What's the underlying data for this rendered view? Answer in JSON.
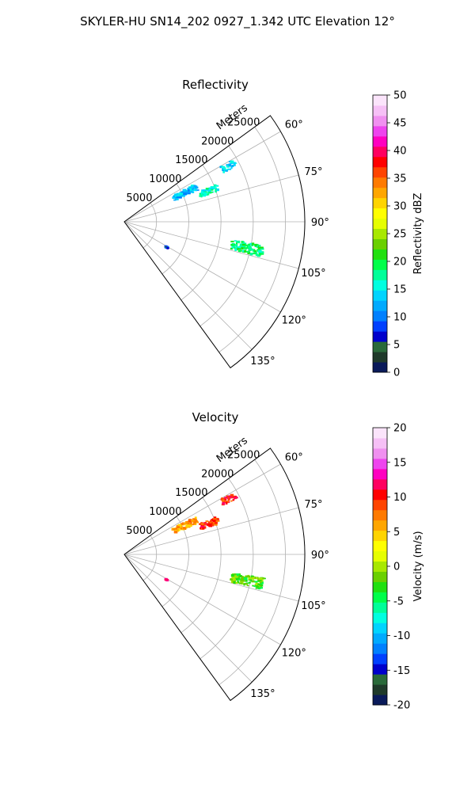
{
  "figure": {
    "suptitle": "SKYLER-HU  SN14_202  0927_1.342 UTC Elevation 12°"
  },
  "chart_data": [
    {
      "type": "polar-sector",
      "title": "Reflectivity",
      "range_label": "Meters",
      "r_tick_labels": [
        "5000",
        "10000",
        "15000",
        "20000",
        "25000"
      ],
      "r_ticks": [
        5000,
        10000,
        15000,
        20000,
        25000
      ],
      "r_max": 28000,
      "theta_range_deg": [
        54,
        144
      ],
      "theta_direction": "clockwise from north",
      "theta_tick_labels": [
        "60°",
        "75°",
        "90°",
        "105°",
        "120°",
        "135°"
      ],
      "theta_ticks": [
        60,
        75,
        90,
        105,
        120,
        135
      ],
      "grid": true,
      "colorbar": {
        "label": "Reflectivity dBZ",
        "min": 0,
        "max": 50,
        "tick_labels": [
          "0",
          "5",
          "10",
          "15",
          "20",
          "25",
          "30",
          "35",
          "40",
          "45",
          "50"
        ],
        "tick_values": [
          0,
          5,
          10,
          15,
          20,
          25,
          30,
          35,
          40,
          45,
          50
        ],
        "colors": [
          "#0a1a5a",
          "#1f3a2a",
          "#2a6a3a",
          "#0000cc",
          "#0040ff",
          "#0080ff",
          "#00aaff",
          "#00d4ff",
          "#00ffe0",
          "#00ff99",
          "#00ff4a",
          "#20e010",
          "#6ad000",
          "#a8e800",
          "#e6ff00",
          "#ffff00",
          "#ffd400",
          "#ffa600",
          "#ff7a00",
          "#ff4400",
          "#ff0000",
          "#ff0060",
          "#ff00c0",
          "#ee44ee",
          "#f090f0",
          "#f6c0f6",
          "#fbe4fb"
        ]
      },
      "echoes": [
        {
          "az": 62,
          "r_start": 17000,
          "r_end": 19500,
          "half_width_deg": 1.6,
          "value": 14
        },
        {
          "az": 64.5,
          "r_start": 8500,
          "r_end": 12500,
          "half_width_deg": 2.5,
          "value": 13
        },
        {
          "az": 70,
          "r_start": 12500,
          "r_end": 15500,
          "half_width_deg": 2.0,
          "value": 16
        },
        {
          "az": 102,
          "r_start": 17000,
          "r_end": 22000,
          "half_width_deg": 2.3,
          "value": 19
        },
        {
          "az": 121,
          "r_start": 7500,
          "r_end": 7900,
          "half_width_deg": 0.4,
          "value": 8
        }
      ]
    },
    {
      "type": "polar-sector",
      "title": "Velocity",
      "range_label": "Meters",
      "r_tick_labels": [
        "5000",
        "10000",
        "15000",
        "20000",
        "25000"
      ],
      "r_ticks": [
        5000,
        10000,
        15000,
        20000,
        25000
      ],
      "r_max": 28000,
      "theta_range_deg": [
        54,
        144
      ],
      "theta_direction": "clockwise from north",
      "theta_tick_labels": [
        "60°",
        "75°",
        "90°",
        "105°",
        "120°",
        "135°"
      ],
      "theta_ticks": [
        60,
        75,
        90,
        105,
        120,
        135
      ],
      "grid": true,
      "colorbar": {
        "label": "Velocity (m/s)",
        "min": -20,
        "max": 20,
        "tick_labels": [
          "-20",
          "-15",
          "-10",
          "-5",
          "0",
          "5",
          "10",
          "15",
          "20"
        ],
        "tick_values": [
          -20,
          -15,
          -10,
          -5,
          0,
          5,
          10,
          15,
          20
        ],
        "colors": [
          "#0a1a5a",
          "#1f3a2a",
          "#2a6a3a",
          "#0000cc",
          "#0040ff",
          "#0080ff",
          "#00aaff",
          "#00d4ff",
          "#00ffe0",
          "#00ff99",
          "#00ff4a",
          "#20e010",
          "#6ad000",
          "#a8e800",
          "#e6ff00",
          "#ffff00",
          "#ffd400",
          "#ffa600",
          "#ff7a00",
          "#ff4400",
          "#ff0000",
          "#ff0060",
          "#ff00c0",
          "#ee44ee",
          "#f090f0",
          "#f6c0f6",
          "#fbe4fb"
        ]
      },
      "echoes": [
        {
          "az": 62,
          "r_start": 17000,
          "r_end": 19500,
          "half_width_deg": 1.6,
          "value": 10
        },
        {
          "az": 64.5,
          "r_start": 8500,
          "r_end": 12500,
          "half_width_deg": 2.5,
          "value": 6
        },
        {
          "az": 70,
          "r_start": 12500,
          "r_end": 15500,
          "half_width_deg": 2.0,
          "value": 9
        },
        {
          "az": 102,
          "r_start": 17000,
          "r_end": 22000,
          "half_width_deg": 2.3,
          "value": -2
        },
        {
          "az": 121,
          "r_start": 7500,
          "r_end": 7900,
          "half_width_deg": 0.4,
          "value": 12
        }
      ]
    }
  ]
}
